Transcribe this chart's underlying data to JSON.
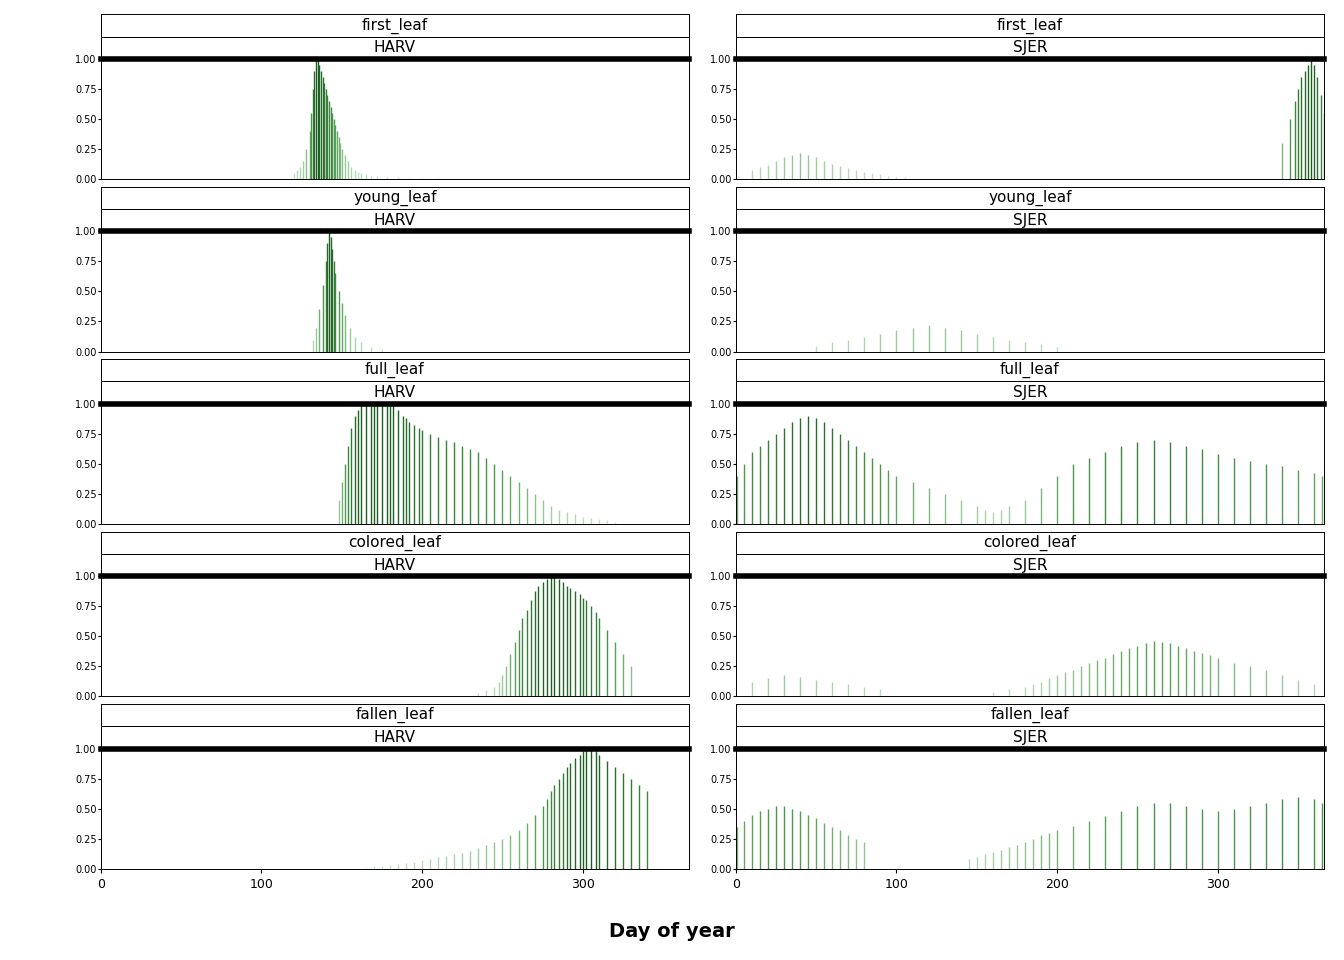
{
  "phenophases": [
    "first_leaf",
    "young_leaf",
    "full_leaf",
    "colored_leaf",
    "fallen_leaf"
  ],
  "sites": [
    "HARV",
    "SJER"
  ],
  "xlim": [
    0,
    366
  ],
  "ylim": [
    0.0,
    1.0
  ],
  "yticks": [
    0.0,
    0.25,
    0.5,
    0.75,
    1.0
  ],
  "xticks": [
    0,
    100,
    200,
    300
  ],
  "xlabel": "Day of year",
  "label_fontsize": 11,
  "tick_fontsize": 9,
  "xlabel_fontsize": 14,
  "background_color": "#ffffff",
  "observations": {
    "first_leaf": {
      "HARV": {
        "days": [
          120,
          122,
          124,
          126,
          128,
          130,
          131,
          132,
          133,
          134,
          135,
          136,
          137,
          138,
          139,
          140,
          141,
          142,
          143,
          144,
          145,
          146,
          147,
          148,
          149,
          150,
          152,
          154,
          156,
          158,
          160,
          162,
          165,
          168,
          172,
          178,
          185,
          192,
          200,
          210
        ],
        "values": [
          0.05,
          0.08,
          0.1,
          0.15,
          0.25,
          0.4,
          0.55,
          0.75,
          0.9,
          1.0,
          1.0,
          0.95,
          0.9,
          0.85,
          0.8,
          0.75,
          0.7,
          0.65,
          0.6,
          0.55,
          0.5,
          0.45,
          0.4,
          0.35,
          0.3,
          0.25,
          0.2,
          0.15,
          0.1,
          0.08,
          0.06,
          0.05,
          0.04,
          0.03,
          0.03,
          0.02,
          0.02,
          0.01,
          0.01,
          0.01
        ]
      },
      "SJER": {
        "days": [
          10,
          15,
          20,
          25,
          30,
          35,
          40,
          45,
          50,
          55,
          60,
          65,
          70,
          75,
          80,
          85,
          90,
          95,
          100,
          105,
          340,
          345,
          348,
          350,
          352,
          354,
          356,
          358,
          360,
          362,
          364,
          366
        ],
        "values": [
          0.08,
          0.1,
          0.12,
          0.15,
          0.18,
          0.2,
          0.22,
          0.2,
          0.18,
          0.15,
          0.13,
          0.11,
          0.09,
          0.08,
          0.06,
          0.05,
          0.04,
          0.03,
          0.02,
          0.02,
          0.3,
          0.5,
          0.65,
          0.75,
          0.85,
          0.9,
          0.95,
          1.0,
          0.95,
          0.85,
          0.7,
          0.55
        ]
      }
    },
    "young_leaf": {
      "HARV": {
        "days": [
          132,
          134,
          136,
          138,
          140,
          141,
          142,
          143,
          144,
          145,
          146,
          148,
          150,
          152,
          155,
          158,
          162,
          168,
          175
        ],
        "values": [
          0.1,
          0.2,
          0.35,
          0.55,
          0.75,
          0.9,
          1.0,
          0.95,
          0.85,
          0.75,
          0.65,
          0.5,
          0.4,
          0.3,
          0.2,
          0.12,
          0.08,
          0.04,
          0.02
        ]
      },
      "SJER": {
        "days": [
          50,
          60,
          70,
          80,
          90,
          100,
          110,
          120,
          130,
          140,
          150,
          160,
          170,
          180,
          190,
          200
        ],
        "values": [
          0.05,
          0.08,
          0.1,
          0.12,
          0.15,
          0.18,
          0.2,
          0.22,
          0.2,
          0.18,
          0.15,
          0.12,
          0.1,
          0.08,
          0.06,
          0.04
        ]
      }
    },
    "full_leaf": {
      "HARV": {
        "days": [
          148,
          150,
          152,
          154,
          156,
          158,
          160,
          162,
          165,
          168,
          170,
          172,
          175,
          178,
          180,
          182,
          185,
          188,
          190,
          192,
          195,
          198,
          200,
          205,
          210,
          215,
          220,
          225,
          230,
          235,
          240,
          245,
          250,
          255,
          260,
          265,
          270,
          275,
          280,
          285,
          290,
          295,
          300,
          305,
          310,
          315,
          320
        ],
        "values": [
          0.2,
          0.35,
          0.5,
          0.65,
          0.8,
          0.9,
          0.95,
          1.0,
          1.0,
          1.0,
          1.0,
          1.0,
          1.0,
          1.0,
          1.0,
          1.0,
          0.95,
          0.9,
          0.88,
          0.85,
          0.82,
          0.8,
          0.78,
          0.75,
          0.72,
          0.7,
          0.68,
          0.65,
          0.62,
          0.6,
          0.55,
          0.5,
          0.45,
          0.4,
          0.35,
          0.3,
          0.25,
          0.2,
          0.15,
          0.12,
          0.1,
          0.08,
          0.06,
          0.05,
          0.04,
          0.03,
          0.02
        ]
      },
      "SJER": {
        "days": [
          1,
          5,
          10,
          15,
          20,
          25,
          30,
          35,
          40,
          45,
          50,
          55,
          60,
          65,
          70,
          75,
          80,
          85,
          90,
          95,
          100,
          110,
          120,
          130,
          140,
          150,
          155,
          160,
          165,
          170,
          180,
          190,
          200,
          210,
          220,
          230,
          240,
          250,
          260,
          270,
          280,
          290,
          300,
          310,
          320,
          330,
          340,
          350,
          360,
          365
        ],
        "values": [
          0.4,
          0.5,
          0.6,
          0.65,
          0.7,
          0.75,
          0.8,
          0.85,
          0.88,
          0.9,
          0.88,
          0.85,
          0.8,
          0.75,
          0.7,
          0.65,
          0.6,
          0.55,
          0.5,
          0.45,
          0.4,
          0.35,
          0.3,
          0.25,
          0.2,
          0.15,
          0.12,
          0.1,
          0.12,
          0.15,
          0.2,
          0.3,
          0.4,
          0.5,
          0.55,
          0.6,
          0.65,
          0.68,
          0.7,
          0.68,
          0.65,
          0.62,
          0.58,
          0.55,
          0.52,
          0.5,
          0.48,
          0.45,
          0.42,
          0.4
        ]
      }
    },
    "colored_leaf": {
      "HARV": {
        "days": [
          235,
          240,
          245,
          248,
          250,
          252,
          255,
          258,
          260,
          262,
          265,
          268,
          270,
          272,
          275,
          278,
          280,
          282,
          285,
          288,
          290,
          292,
          295,
          298,
          300,
          302,
          305,
          308,
          310,
          315,
          320,
          325,
          330
        ],
        "values": [
          0.03,
          0.05,
          0.08,
          0.12,
          0.18,
          0.25,
          0.35,
          0.45,
          0.55,
          0.65,
          0.72,
          0.8,
          0.88,
          0.92,
          0.95,
          0.98,
          1.0,
          1.0,
          0.98,
          0.95,
          0.92,
          0.9,
          0.88,
          0.85,
          0.82,
          0.8,
          0.75,
          0.7,
          0.65,
          0.55,
          0.45,
          0.35,
          0.25
        ]
      },
      "SJER": {
        "days": [
          10,
          20,
          30,
          40,
          50,
          60,
          70,
          80,
          90,
          160,
          170,
          180,
          185,
          190,
          195,
          200,
          205,
          210,
          215,
          220,
          225,
          230,
          235,
          240,
          245,
          250,
          255,
          260,
          265,
          270,
          275,
          280,
          285,
          290,
          295,
          300,
          310,
          320,
          330,
          340,
          350,
          360
        ],
        "values": [
          0.12,
          0.15,
          0.18,
          0.16,
          0.14,
          0.12,
          0.1,
          0.08,
          0.06,
          0.04,
          0.06,
          0.08,
          0.1,
          0.12,
          0.15,
          0.18,
          0.2,
          0.22,
          0.25,
          0.28,
          0.3,
          0.32,
          0.35,
          0.38,
          0.4,
          0.42,
          0.44,
          0.46,
          0.45,
          0.44,
          0.42,
          0.4,
          0.38,
          0.36,
          0.34,
          0.32,
          0.28,
          0.25,
          0.22,
          0.18,
          0.14,
          0.1
        ]
      }
    },
    "fallen_leaf": {
      "HARV": {
        "days": [
          165,
          170,
          175,
          180,
          185,
          190,
          195,
          200,
          205,
          210,
          215,
          220,
          225,
          230,
          235,
          240,
          245,
          250,
          255,
          260,
          265,
          270,
          275,
          278,
          280,
          282,
          285,
          288,
          290,
          292,
          295,
          298,
          300,
          302,
          305,
          308,
          310,
          315,
          320,
          325,
          330,
          335,
          340
        ],
        "values": [
          0.01,
          0.02,
          0.02,
          0.03,
          0.04,
          0.05,
          0.06,
          0.07,
          0.08,
          0.1,
          0.11,
          0.12,
          0.13,
          0.15,
          0.17,
          0.2,
          0.22,
          0.25,
          0.28,
          0.32,
          0.38,
          0.45,
          0.52,
          0.58,
          0.65,
          0.7,
          0.75,
          0.8,
          0.85,
          0.88,
          0.92,
          0.95,
          0.98,
          1.0,
          1.0,
          0.98,
          0.95,
          0.9,
          0.85,
          0.8,
          0.75,
          0.7,
          0.65
        ]
      },
      "SJER": {
        "days": [
          1,
          5,
          10,
          15,
          20,
          25,
          30,
          35,
          40,
          45,
          50,
          55,
          60,
          65,
          70,
          75,
          80,
          145,
          150,
          155,
          160,
          165,
          170,
          175,
          180,
          185,
          190,
          195,
          200,
          210,
          220,
          230,
          240,
          250,
          260,
          270,
          280,
          290,
          300,
          310,
          320,
          330,
          340,
          350,
          360,
          365
        ],
        "values": [
          0.35,
          0.4,
          0.45,
          0.48,
          0.5,
          0.52,
          0.52,
          0.5,
          0.48,
          0.45,
          0.42,
          0.38,
          0.35,
          0.32,
          0.28,
          0.25,
          0.22,
          0.08,
          0.1,
          0.12,
          0.14,
          0.16,
          0.18,
          0.2,
          0.22,
          0.25,
          0.28,
          0.3,
          0.32,
          0.36,
          0.4,
          0.44,
          0.48,
          0.52,
          0.55,
          0.55,
          0.52,
          0.5,
          0.48,
          0.5,
          0.52,
          0.55,
          0.58,
          0.6,
          0.58,
          0.55
        ]
      }
    }
  }
}
